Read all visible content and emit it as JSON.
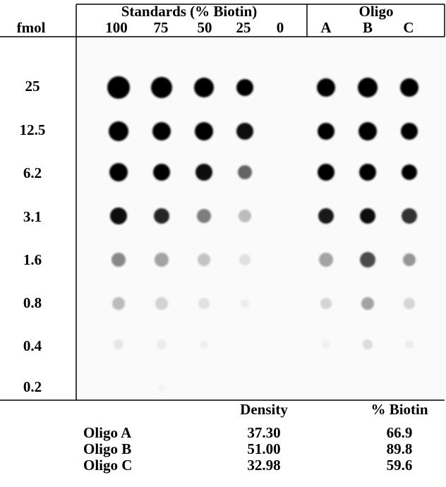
{
  "table": {
    "group_headers": [
      "Standards (% Biotin)",
      "Oligo"
    ],
    "column_headers": [
      "fmol",
      "100",
      "75",
      "50",
      "25",
      "0",
      "A",
      "B",
      "C"
    ],
    "row_labels": [
      "25",
      "12.5",
      "6.2",
      "3.1",
      "1.6",
      "0.8",
      "0.4",
      "0.2"
    ]
  },
  "results": {
    "headers": [
      "Density",
      "% Biotin"
    ],
    "rows": [
      [
        "Oligo A",
        "37.30",
        "66.9"
      ],
      [
        "Oligo B",
        "51.00",
        "89.8"
      ],
      [
        "Oligo C",
        "32.98",
        "59.6"
      ]
    ]
  }
}
